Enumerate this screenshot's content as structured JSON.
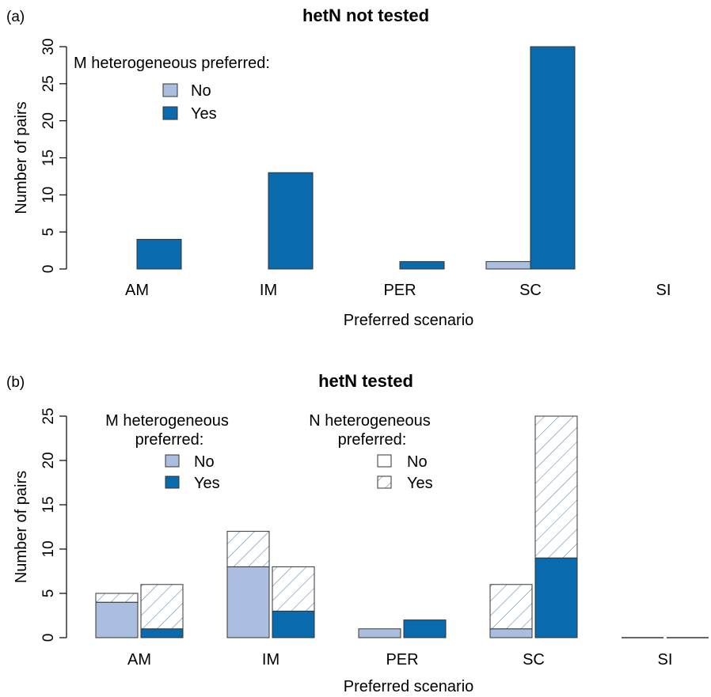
{
  "panel_a_label": "(a)",
  "panel_b_label": "(b)",
  "chart_data": [
    {
      "type": "bar",
      "title": "hetN not tested",
      "xlabel": "Preferred scenario",
      "ylabel": "Number of pairs",
      "categories": [
        "AM",
        "IM",
        "PER",
        "SC",
        "SI"
      ],
      "ylim": [
        0,
        30
      ],
      "yticks": [
        0,
        5,
        10,
        15,
        20,
        25,
        30
      ],
      "legend": {
        "title": "M heterogeneous preferred:",
        "placement": "top-left",
        "entries": [
          {
            "label": "No",
            "color": "#aabfe0"
          },
          {
            "label": "Yes",
            "color": "#0a6aae"
          }
        ]
      },
      "series": [
        {
          "name": "No",
          "color": "#aabfe0",
          "values": [
            0,
            0,
            0,
            1,
            0
          ]
        },
        {
          "name": "Yes",
          "color": "#0a6aae",
          "values": [
            4,
            13,
            1,
            30,
            0
          ]
        }
      ]
    },
    {
      "type": "bar",
      "title": "hetN tested",
      "xlabel": "Preferred scenario",
      "ylabel": "Number of pairs",
      "categories": [
        "AM",
        "IM",
        "PER",
        "SC",
        "SI"
      ],
      "ylim": [
        0,
        25
      ],
      "yticks": [
        0,
        5,
        10,
        15,
        20,
        25
      ],
      "stacked": true,
      "legend_m": {
        "title_line1": "M heterogeneous",
        "title_line2": "preferred:",
        "placement": "top-left",
        "entries": [
          {
            "label": "No",
            "color": "#aabfe0"
          },
          {
            "label": "Yes",
            "color": "#0a6aae"
          }
        ]
      },
      "legend_n": {
        "title_line1": "N heterogeneous",
        "title_line2": "preferred:",
        "placement": "top-center",
        "entries": [
          {
            "label": "No",
            "pattern": "none"
          },
          {
            "label": "Yes",
            "pattern": "hatched"
          }
        ]
      },
      "series": [
        {
          "group": "M No",
          "color": "#aabfe0",
          "n_no": [
            4,
            8,
            1,
            1,
            0
          ],
          "n_yes": [
            1,
            4,
            0,
            5,
            0
          ]
        },
        {
          "group": "M Yes",
          "color": "#0a6aae",
          "n_no": [
            1,
            3,
            2,
            9,
            0
          ],
          "n_yes": [
            5,
            5,
            0,
            16,
            0
          ]
        }
      ]
    }
  ]
}
